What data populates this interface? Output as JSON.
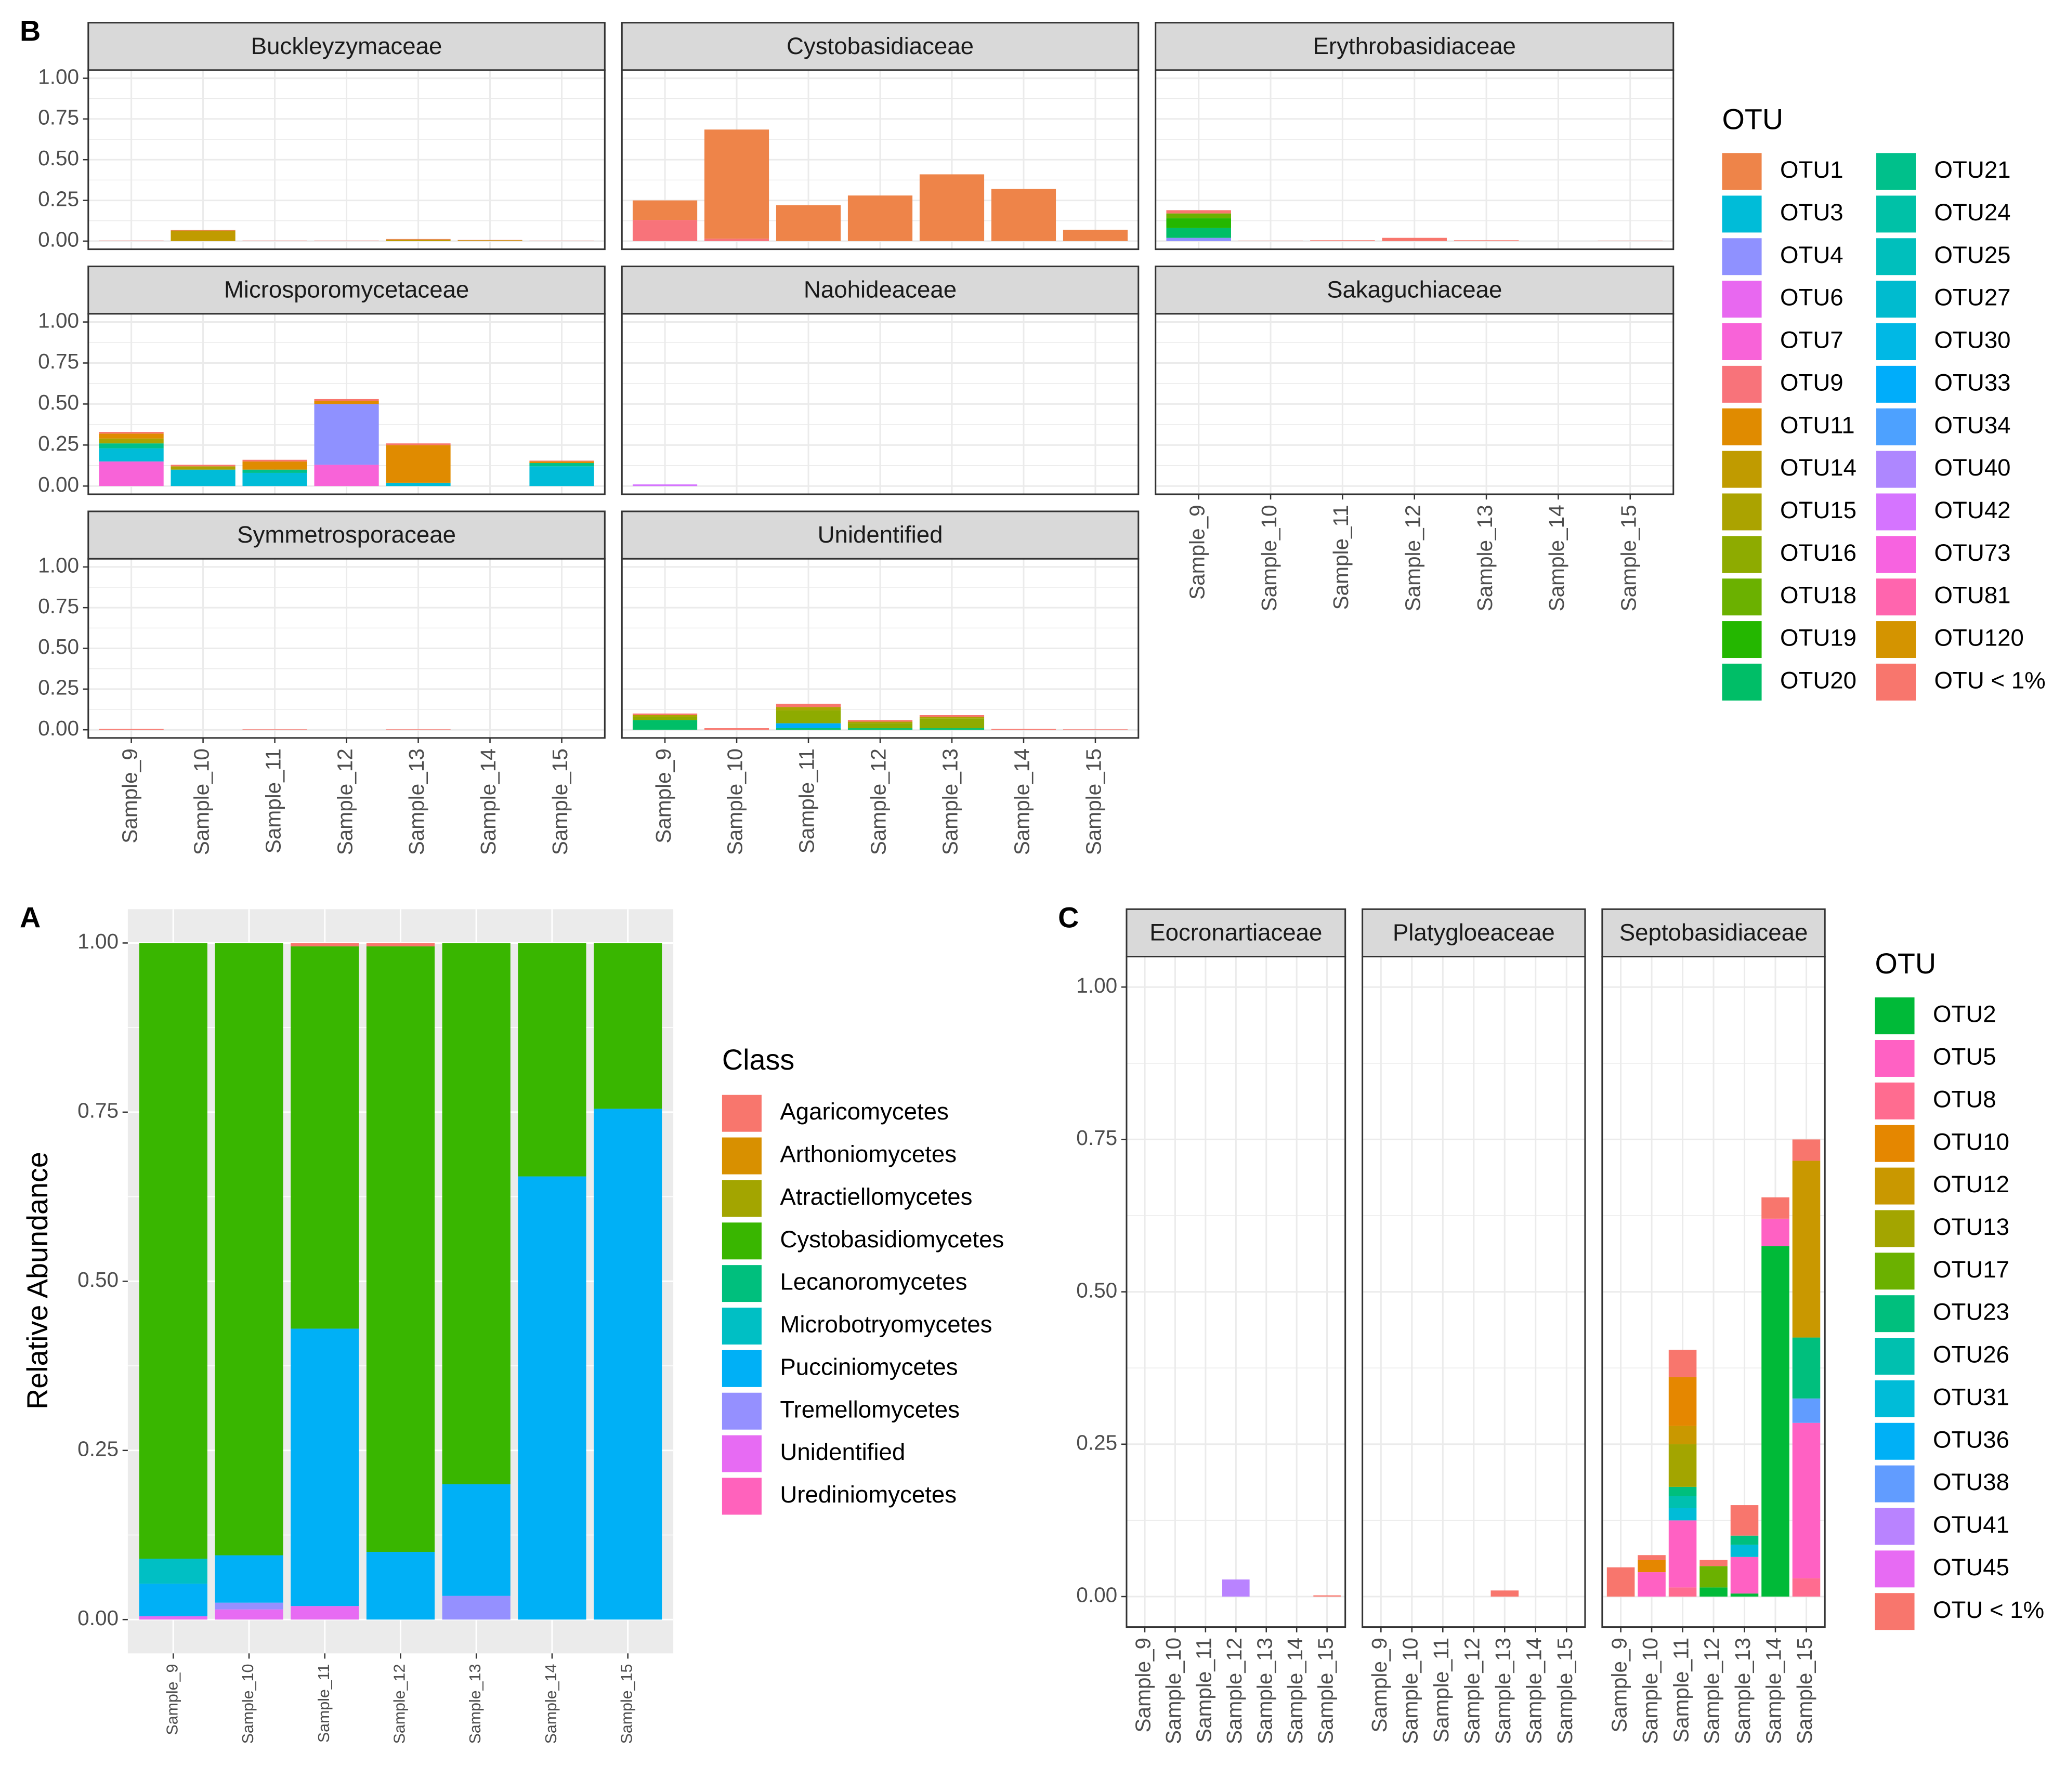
{
  "chart_data": [
    {
      "type": "stacked_bar",
      "panel_label": "A",
      "ylabel": "Relative Abundance",
      "legend_title": "Class",
      "categories": [
        "Sample_9",
        "Sample_10",
        "Sample_11",
        "Sample_12",
        "Sample_13",
        "Sample_14",
        "Sample_15"
      ],
      "ylim": [
        -0.05,
        1.05
      ],
      "yticks": [
        {
          "value": 0,
          "label": "0.00"
        },
        {
          "value": 0.25,
          "label": "0.25"
        },
        {
          "value": 0.5,
          "label": "0.50"
        },
        {
          "value": 0.75,
          "label": "0.75"
        },
        {
          "value": 1,
          "label": "1.00"
        }
      ],
      "series": [
        {
          "name": "Agaricomycetes",
          "color": "#F8766D",
          "values": [
            0,
            0,
            0.005,
            0.005,
            0,
            0,
            0
          ]
        },
        {
          "name": "Arthoniomycetes",
          "color": "#D89000",
          "values": [
            0,
            0,
            0,
            0,
            0,
            0,
            0
          ]
        },
        {
          "name": "Atractiellomycetes",
          "color": "#A3A500",
          "values": [
            0,
            0,
            0,
            0,
            0,
            0,
            0
          ]
        },
        {
          "name": "Cystobasidiomycetes",
          "color": "#39B600",
          "values": [
            0.91,
            0.905,
            0.565,
            0.895,
            0.8,
            0.345,
            0.245
          ]
        },
        {
          "name": "Lecanoromycetes",
          "color": "#00BF7D",
          "values": [
            0,
            0,
            0,
            0,
            0,
            0,
            0
          ]
        },
        {
          "name": "Microbotryomycetes",
          "color": "#00BFC4",
          "values": [
            0.037,
            0,
            0,
            0,
            0,
            0,
            0
          ]
        },
        {
          "name": "Pucciniomycetes",
          "color": "#00B0F6",
          "values": [
            0.048,
            0.07,
            0.41,
            0.1,
            0.165,
            0.655,
            0.755
          ]
        },
        {
          "name": "Tremellomycetes",
          "color": "#9590FF",
          "values": [
            0,
            0.01,
            0,
            0,
            0.035,
            0,
            0
          ]
        },
        {
          "name": "Unidentified",
          "color": "#E76BF3",
          "values": [
            0.005,
            0.015,
            0.02,
            0,
            0,
            0,
            0
          ]
        },
        {
          "name": "Urediniomycetes",
          "color": "#FF62BC",
          "values": [
            0,
            0,
            0,
            0,
            0,
            0,
            0
          ]
        }
      ]
    },
    {
      "type": "faceted_stacked_bar",
      "panel_label": "B",
      "legend_title": "OTU",
      "categories": [
        "Sample_9",
        "Sample_10",
        "Sample_11",
        "Sample_12",
        "Sample_13",
        "Sample_14",
        "Sample_15"
      ],
      "ylim": [
        -0.05,
        1.05
      ],
      "yticks": [
        {
          "value": 0,
          "label": "0.00"
        },
        {
          "value": 0.25,
          "label": "0.25"
        },
        {
          "value": 0.5,
          "label": "0.50"
        },
        {
          "value": 0.75,
          "label": "0.75"
        },
        {
          "value": 1,
          "label": "1.00"
        }
      ],
      "legend": [
        {
          "name": "OTU1",
          "color": "#EE8449"
        },
        {
          "name": "OTU3",
          "color": "#00BCD8"
        },
        {
          "name": "OTU4",
          "color": "#8F91FF"
        },
        {
          "name": "OTU6",
          "color": "#E868F0"
        },
        {
          "name": "OTU7",
          "color": "#F863D8"
        },
        {
          "name": "OTU9",
          "color": "#F8737A"
        },
        {
          "name": "OTU11",
          "color": "#E08B00"
        },
        {
          "name": "OTU14",
          "color": "#C09B00"
        },
        {
          "name": "OTU15",
          "color": "#ABA300"
        },
        {
          "name": "OTU16",
          "color": "#8EAB00"
        },
        {
          "name": "OTU18",
          "color": "#6BB100"
        },
        {
          "name": "OTU19",
          "color": "#24B700"
        },
        {
          "name": "OTU20",
          "color": "#00BE67"
        },
        {
          "name": "OTU21",
          "color": "#00C08B"
        },
        {
          "name": "OTU24",
          "color": "#00C1A7"
        },
        {
          "name": "OTU25",
          "color": "#00BFBC"
        },
        {
          "name": "OTU27",
          "color": "#00BBCF"
        },
        {
          "name": "OTU30",
          "color": "#00B8E5"
        },
        {
          "name": "OTU33",
          "color": "#00ADFA"
        },
        {
          "name": "OTU34",
          "color": "#4DA1FF"
        },
        {
          "name": "OTU40",
          "color": "#AE87FF"
        },
        {
          "name": "OTU42",
          "color": "#D574FF"
        },
        {
          "name": "OTU73",
          "color": "#F763E0"
        },
        {
          "name": "OTU81",
          "color": "#FF65AE"
        },
        {
          "name": "OTU120",
          "color": "#D49400"
        },
        {
          "name": "OTU < 1%",
          "color": "#F8766D"
        }
      ],
      "facets": [
        {
          "title": "Buckleyzymaceae",
          "series": [
            {
              "name": "OTU14",
              "values": [
                0,
                0.065,
                0,
                0,
                0.01,
                0.005,
                0
              ]
            },
            {
              "name": "OTU < 1%",
              "values": [
                0.003,
                0.003,
                0.003,
                0.003,
                0.003,
                0.002,
                0.002
              ]
            }
          ]
        },
        {
          "title": "Cystobasidiaceae",
          "series": [
            {
              "name": "OTU9",
              "values": [
                0.13,
                0.015,
                0,
                0,
                0,
                0,
                0
              ]
            },
            {
              "name": "OTU1",
              "values": [
                0.12,
                0.67,
                0.22,
                0.28,
                0.41,
                0.32,
                0.07
              ]
            }
          ]
        },
        {
          "title": "Erythrobasidiaceae",
          "series": [
            {
              "name": "OTU4",
              "values": [
                0.02,
                0,
                0,
                0,
                0,
                0,
                0
              ]
            },
            {
              "name": "OTU20",
              "values": [
                0.06,
                0,
                0,
                0,
                0,
                0,
                0
              ]
            },
            {
              "name": "OTU19",
              "values": [
                0.06,
                0,
                0,
                0,
                0,
                0,
                0
              ]
            },
            {
              "name": "OTU18",
              "values": [
                0.03,
                0,
                0,
                0,
                0,
                0,
                0
              ]
            },
            {
              "name": "OTU < 1%",
              "values": [
                0.02,
                0.002,
                0.005,
                0.02,
                0.005,
                0,
                0.002
              ]
            }
          ]
        },
        {
          "title": "Microsporomycetaceae",
          "series": [
            {
              "name": "OTU7",
              "values": [
                0.15,
                0,
                0,
                0.13,
                0,
                0,
                0
              ]
            },
            {
              "name": "OTU4",
              "values": [
                0,
                0,
                0,
                0.37,
                0,
                0,
                0
              ]
            },
            {
              "name": "OTU3",
              "values": [
                0.08,
                0.1,
                0.08,
                0,
                0.02,
                0,
                0.12
              ]
            },
            {
              "name": "OTU21",
              "values": [
                0.03,
                0,
                0.02,
                0,
                0,
                0,
                0.02
              ]
            },
            {
              "name": "OTU15",
              "values": [
                0.03,
                0.02,
                0,
                0,
                0,
                0,
                0
              ]
            },
            {
              "name": "OTU11",
              "values": [
                0.03,
                0,
                0.05,
                0.02,
                0.23,
                0,
                0.01
              ]
            },
            {
              "name": "OTU < 1%",
              "values": [
                0.01,
                0.01,
                0.01,
                0.01,
                0.01,
                0,
                0.005
              ]
            }
          ]
        },
        {
          "title": "Naohideaceae",
          "series": [
            {
              "name": "OTU42",
              "values": [
                0.01,
                0,
                0,
                0,
                0,
                0,
                0
              ]
            }
          ]
        },
        {
          "title": "Sakaguchiaceae",
          "series": []
        },
        {
          "title": "Symmetrosporaceae",
          "series": [
            {
              "name": "OTU < 1%",
              "values": [
                0.005,
                0,
                0.003,
                0,
                0.003,
                0,
                0
              ]
            }
          ]
        },
        {
          "title": "Unidentified",
          "series": [
            {
              "name": "OTU20",
              "values": [
                0.06,
                0,
                0.01,
                0.01,
                0.01,
                0,
                0
              ]
            },
            {
              "name": "OTU33",
              "values": [
                0,
                0,
                0.03,
                0,
                0,
                0,
                0
              ]
            },
            {
              "name": "OTU16",
              "values": [
                0.02,
                0,
                0.08,
                0.03,
                0.06,
                0,
                0
              ]
            },
            {
              "name": "OTU15",
              "values": [
                0.01,
                0,
                0.02,
                0.01,
                0.01,
                0,
                0
              ]
            },
            {
              "name": "OTU < 1%",
              "values": [
                0.01,
                0.01,
                0.02,
                0.01,
                0.01,
                0.005,
                0.003
              ]
            }
          ]
        }
      ]
    },
    {
      "type": "faceted_stacked_bar",
      "panel_label": "C",
      "legend_title": "OTU",
      "categories": [
        "Sample_9",
        "Sample_10",
        "Sample_11",
        "Sample_12",
        "Sample_13",
        "Sample_14",
        "Sample_15"
      ],
      "ylim": [
        -0.05,
        1.05
      ],
      "yticks": [
        {
          "value": 0,
          "label": "0.00"
        },
        {
          "value": 0.25,
          "label": "0.25"
        },
        {
          "value": 0.5,
          "label": "0.50"
        },
        {
          "value": 0.75,
          "label": "0.75"
        },
        {
          "value": 1,
          "label": "1.00"
        }
      ],
      "legend": [
        {
          "name": "OTU2",
          "color": "#00BA38"
        },
        {
          "name": "OTU5",
          "color": "#FF61C3"
        },
        {
          "name": "OTU8",
          "color": "#FF6C90"
        },
        {
          "name": "OTU10",
          "color": "#E58700"
        },
        {
          "name": "OTU12",
          "color": "#C99800"
        },
        {
          "name": "OTU13",
          "color": "#A3A500"
        },
        {
          "name": "OTU17",
          "color": "#6BB100"
        },
        {
          "name": "OTU23",
          "color": "#00BF7D"
        },
        {
          "name": "OTU26",
          "color": "#00C0AF"
        },
        {
          "name": "OTU31",
          "color": "#00BCD8"
        },
        {
          "name": "OTU36",
          "color": "#00B0F6"
        },
        {
          "name": "OTU38",
          "color": "#619CFF"
        },
        {
          "name": "OTU41",
          "color": "#B983FF"
        },
        {
          "name": "OTU45",
          "color": "#E76BF3"
        },
        {
          "name": "OTU < 1%",
          "color": "#F8766D"
        }
      ],
      "facets": [
        {
          "title": "Eocronartiaceae",
          "series": [
            {
              "name": "OTU41",
              "values": [
                0,
                0,
                0,
                0.028,
                0,
                0,
                0
              ]
            },
            {
              "name": "OTU < 1%",
              "values": [
                0,
                0,
                0,
                0,
                0,
                0,
                0.002
              ]
            }
          ]
        },
        {
          "title": "Platygloeaceae",
          "series": [
            {
              "name": "OTU < 1%",
              "values": [
                0,
                0,
                0,
                0,
                0.01,
                0,
                0
              ]
            }
          ]
        },
        {
          "title": "Septobasidiaceae",
          "series": [
            {
              "name": "OTU2",
              "values": [
                0,
                0,
                0,
                0.015,
                0.005,
                0.575,
                0
              ]
            },
            {
              "name": "OTU8",
              "values": [
                0,
                0,
                0.015,
                0,
                0,
                0,
                0.03
              ]
            },
            {
              "name": "OTU5",
              "values": [
                0,
                0.04,
                0.11,
                0,
                0.06,
                0.045,
                0.255
              ]
            },
            {
              "name": "OTU31",
              "values": [
                0,
                0,
                0.02,
                0,
                0.02,
                0,
                0
              ]
            },
            {
              "name": "OTU38",
              "values": [
                0,
                0,
                0,
                0,
                0,
                0,
                0.04
              ]
            },
            {
              "name": "OTU26",
              "values": [
                0,
                0,
                0.02,
                0,
                0,
                0,
                0
              ]
            },
            {
              "name": "OTU23",
              "values": [
                0,
                0,
                0.015,
                0,
                0.015,
                0,
                0.1
              ]
            },
            {
              "name": "OTU17",
              "values": [
                0,
                0,
                0,
                0.035,
                0,
                0,
                0
              ]
            },
            {
              "name": "OTU13",
              "values": [
                0,
                0,
                0.07,
                0,
                0,
                0,
                0
              ]
            },
            {
              "name": "OTU12",
              "values": [
                0,
                0,
                0.03,
                0,
                0,
                0,
                0.29
              ]
            },
            {
              "name": "OTU10",
              "values": [
                0,
                0.02,
                0.08,
                0,
                0,
                0,
                0
              ]
            },
            {
              "name": "OTU < 1%",
              "values": [
                0.048,
                0.008,
                0.045,
                0.01,
                0.05,
                0.035,
                0.035
              ]
            }
          ]
        }
      ]
    }
  ]
}
